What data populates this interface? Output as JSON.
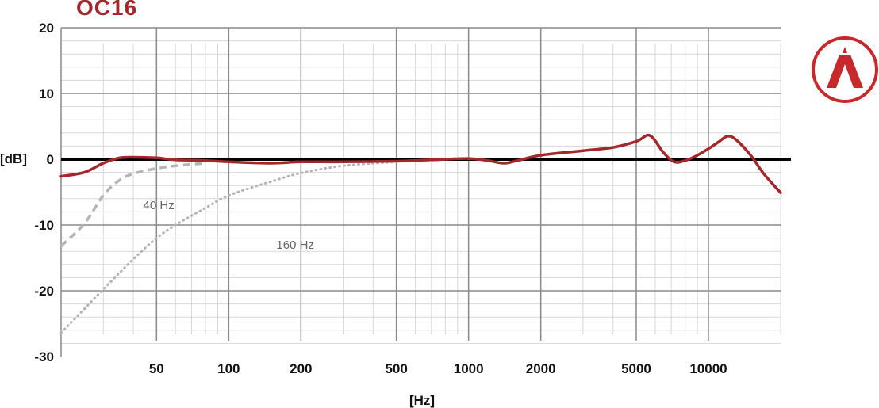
{
  "title": "OC16",
  "logo_icon": "austrian-audio-logo-icon",
  "colors": {
    "brand": "#a3282b",
    "zero_line": "#000000",
    "grid_major": "#8a8a8a",
    "grid_minor": "#d8d8d8",
    "filter_curves": "#b5b5b5"
  },
  "chart_data": {
    "type": "line",
    "title": "OC16",
    "xlabel": "[Hz]",
    "ylabel": "[dB]",
    "x_scale": "log",
    "xlim": [
      20,
      20000
    ],
    "ylim": [
      -30,
      20
    ],
    "grid": true,
    "x_ticks": [
      50,
      100,
      200,
      500,
      1000,
      2000,
      5000,
      10000
    ],
    "x_tick_labels": [
      "50",
      "100",
      "200",
      "500",
      "1000",
      "2000",
      "5000",
      "10000"
    ],
    "y_ticks": [
      20,
      10,
      0,
      -10,
      -20,
      -30
    ],
    "y_tick_labels": [
      "20",
      "10",
      "0",
      "-10",
      "-20",
      "-30"
    ],
    "series": [
      {
        "name": "",
        "style": "solid",
        "color": "#a3282b",
        "x": [
          20,
          25,
          30,
          35,
          40,
          50,
          60,
          80,
          100,
          150,
          200,
          300,
          500,
          700,
          1000,
          1200,
          1400,
          1600,
          2000,
          3000,
          4000,
          5000,
          5700,
          6500,
          7200,
          8000,
          9000,
          10000,
          11000,
          12000,
          13000,
          15000,
          17000,
          20000
        ],
        "y": [
          -2.6,
          -2.0,
          -0.6,
          0.2,
          0.3,
          0.2,
          -0.1,
          -0.2,
          -0.4,
          -0.6,
          -0.4,
          -0.4,
          -0.3,
          -0.1,
          0.1,
          -0.2,
          -0.6,
          -0.2,
          0.6,
          1.3,
          1.8,
          2.7,
          3.6,
          1.0,
          -0.4,
          -0.2,
          0.6,
          1.6,
          2.6,
          3.5,
          3.0,
          0.6,
          -2.2,
          -5.1
        ]
      },
      {
        "name": "40 Hz",
        "style": "dashed",
        "color": "#b5b5b5",
        "x": [
          20,
          25,
          30,
          35,
          40,
          50,
          60,
          80
        ],
        "y": [
          -13.2,
          -9.8,
          -5.5,
          -3.2,
          -2.2,
          -1.4,
          -1.0,
          -0.6
        ]
      },
      {
        "name": "160 Hz",
        "style": "dotted",
        "color": "#b5b5b5",
        "x": [
          20,
          30,
          40,
          50,
          60,
          80,
          100,
          150,
          200,
          300,
          500
        ],
        "y": [
          -26.4,
          -19.8,
          -15.2,
          -12.0,
          -10.0,
          -7.4,
          -5.5,
          -3.4,
          -2.1,
          -1.0,
          -0.4
        ]
      }
    ],
    "annotations": [
      {
        "text": "40 Hz",
        "x": 44,
        "y": -7
      },
      {
        "text": "160 Hz",
        "x": 158,
        "y": -13
      }
    ]
  }
}
